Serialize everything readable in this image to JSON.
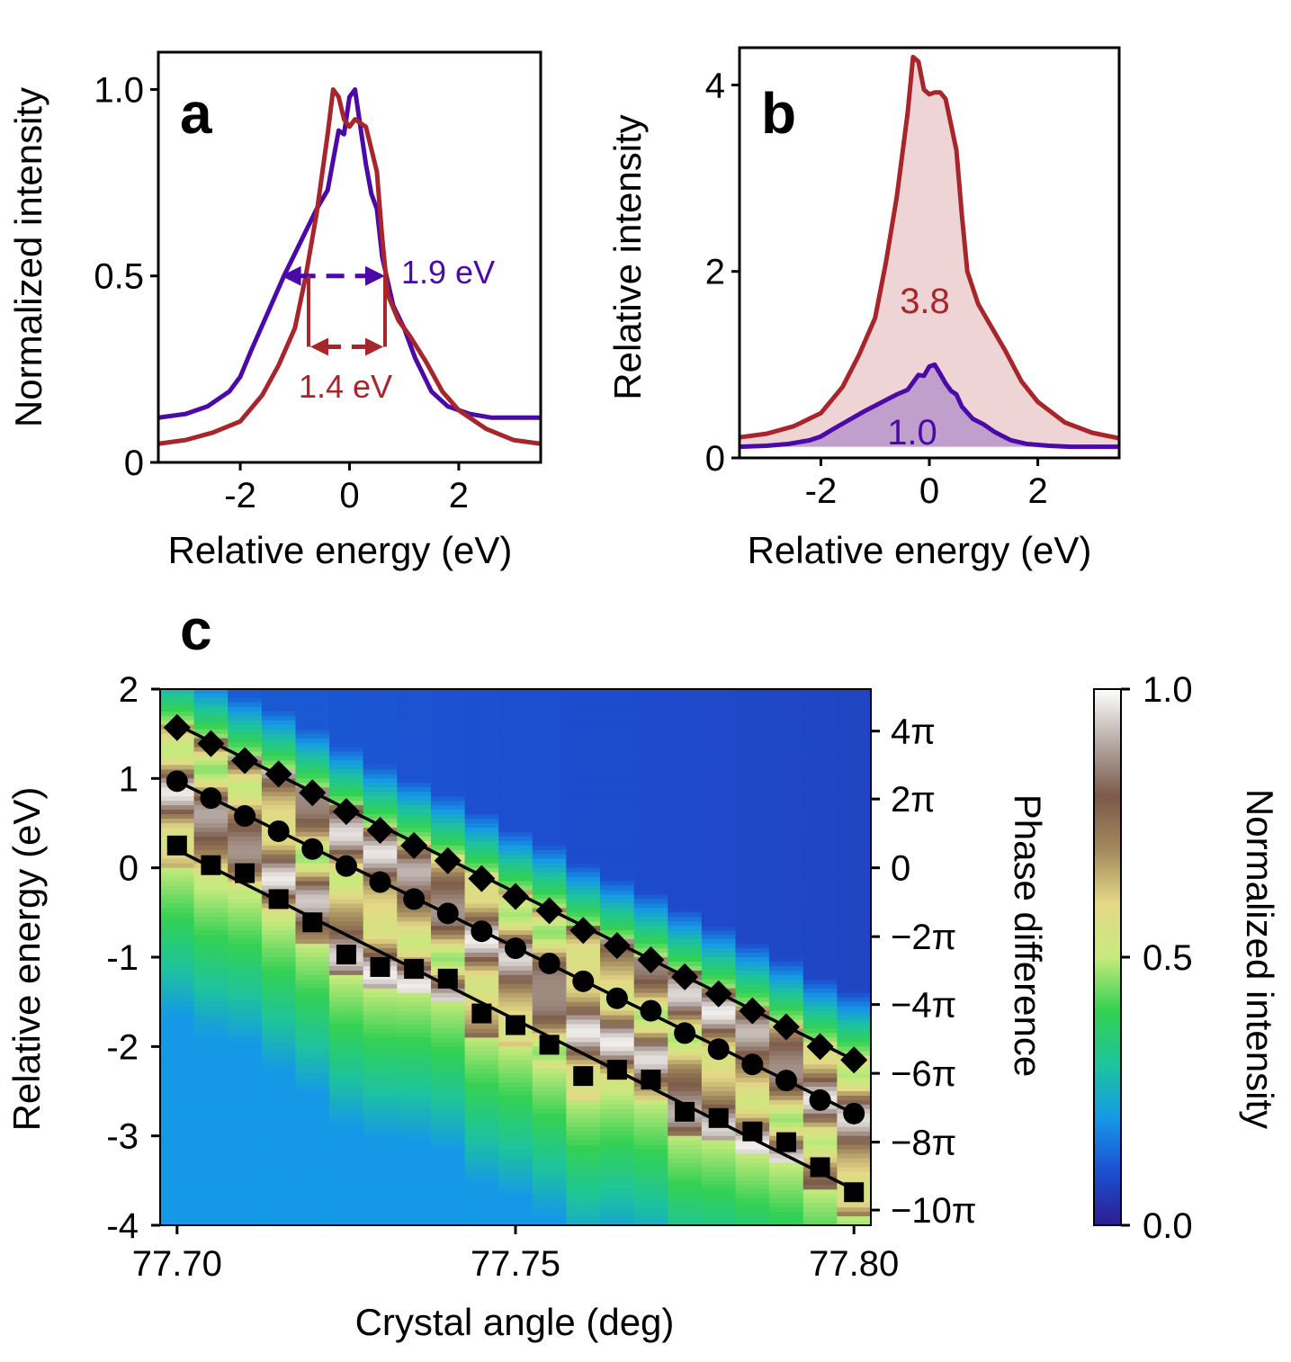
{
  "chart_data": [
    {
      "id": "a",
      "type": "line",
      "panel_label": "a",
      "xlabel": "Relative energy (eV)",
      "ylabel": "Normalized intensity",
      "xlim": [
        -3.5,
        3.5
      ],
      "ylim": [
        0,
        1.1
      ],
      "xticks": [
        "-2",
        "0",
        "2"
      ],
      "xtick_values": [
        -2,
        0,
        2
      ],
      "yticks": [
        "0",
        "0.5",
        "1.0"
      ],
      "ytick_values": [
        0,
        0.5,
        1.0
      ],
      "colors": {
        "purple": "#4b0aa8",
        "red": "#a8262b"
      },
      "series": [
        {
          "name": "purple",
          "x": [
            -3.5,
            -3.0,
            -2.6,
            -2.2,
            -2.0,
            -1.8,
            -1.5,
            -1.2,
            -1.0,
            -0.8,
            -0.6,
            -0.4,
            -0.2,
            -0.1,
            0.0,
            0.1,
            0.2,
            0.3,
            0.4,
            0.5,
            0.6,
            0.8,
            1.0,
            1.2,
            1.5,
            1.8,
            2.2,
            2.6,
            3.0,
            3.5
          ],
          "y": [
            0.12,
            0.13,
            0.15,
            0.19,
            0.23,
            0.3,
            0.4,
            0.5,
            0.56,
            0.62,
            0.68,
            0.73,
            0.89,
            0.88,
            0.98,
            1.0,
            0.9,
            0.8,
            0.72,
            0.68,
            0.55,
            0.42,
            0.36,
            0.28,
            0.19,
            0.15,
            0.13,
            0.12,
            0.12,
            0.12
          ]
        },
        {
          "name": "red",
          "x": [
            -3.5,
            -3.0,
            -2.5,
            -2.0,
            -1.6,
            -1.3,
            -1.0,
            -0.8,
            -0.6,
            -0.4,
            -0.3,
            -0.2,
            -0.1,
            0.0,
            0.1,
            0.2,
            0.3,
            0.5,
            0.6,
            0.7,
            0.9,
            1.1,
            1.4,
            1.7,
            2.0,
            2.5,
            3.0,
            3.5
          ],
          "y": [
            0.05,
            0.06,
            0.08,
            0.11,
            0.18,
            0.26,
            0.36,
            0.5,
            0.67,
            0.88,
            1.0,
            0.98,
            0.92,
            0.9,
            0.92,
            0.91,
            0.9,
            0.78,
            0.6,
            0.45,
            0.38,
            0.34,
            0.27,
            0.19,
            0.14,
            0.09,
            0.06,
            0.05
          ]
        }
      ],
      "annotations": [
        {
          "text": "1.9 eV",
          "color": "purple",
          "x_from": -1.25,
          "x_to": 0.65,
          "y": 0.5
        },
        {
          "text": "1.4 eV",
          "color": "red",
          "x_from": -0.75,
          "x_to": 0.65,
          "y": 0.31
        }
      ]
    },
    {
      "id": "b",
      "type": "area",
      "panel_label": "b",
      "xlabel": "Relative energy (eV)",
      "ylabel": "Relative intensity",
      "xlim": [
        -3.5,
        3.5
      ],
      "ylim": [
        0,
        4.4
      ],
      "xticks": [
        "-2",
        "0",
        "2"
      ],
      "xtick_values": [
        -2,
        0,
        2
      ],
      "yticks": [
        "0",
        "2",
        "4"
      ],
      "ytick_values": [
        0,
        2,
        4
      ],
      "series": [
        {
          "name": "red",
          "label": "3.8",
          "x": [
            -3.5,
            -3.0,
            -2.5,
            -2.0,
            -1.6,
            -1.3,
            -1.0,
            -0.8,
            -0.6,
            -0.4,
            -0.3,
            -0.2,
            -0.1,
            0.0,
            0.1,
            0.2,
            0.3,
            0.5,
            0.6,
            0.7,
            0.9,
            1.1,
            1.4,
            1.7,
            2.0,
            2.5,
            3.0,
            3.5
          ],
          "y": [
            0.22,
            0.26,
            0.34,
            0.48,
            0.76,
            1.1,
            1.5,
            2.1,
            2.8,
            3.7,
            4.3,
            4.25,
            3.95,
            3.9,
            3.92,
            3.92,
            3.85,
            3.3,
            2.6,
            2.0,
            1.65,
            1.45,
            1.15,
            0.82,
            0.6,
            0.38,
            0.27,
            0.21
          ]
        },
        {
          "name": "purple",
          "label": "1.0",
          "x": [
            -3.5,
            -3.0,
            -2.6,
            -2.2,
            -2.0,
            -1.8,
            -1.5,
            -1.2,
            -1.0,
            -0.8,
            -0.6,
            -0.4,
            -0.2,
            -0.1,
            0.0,
            0.1,
            0.2,
            0.3,
            0.4,
            0.5,
            0.6,
            0.8,
            1.0,
            1.2,
            1.5,
            1.8,
            2.2,
            2.6,
            3.0,
            3.5
          ],
          "y": [
            0.12,
            0.13,
            0.15,
            0.19,
            0.23,
            0.3,
            0.4,
            0.5,
            0.56,
            0.62,
            0.68,
            0.73,
            0.89,
            0.88,
            0.98,
            1.0,
            0.9,
            0.8,
            0.72,
            0.68,
            0.55,
            0.42,
            0.36,
            0.28,
            0.19,
            0.15,
            0.13,
            0.12,
            0.12,
            0.12
          ]
        }
      ]
    },
    {
      "id": "c",
      "type": "heatmap",
      "panel_label": "c",
      "xlabel": "Crystal angle (deg)",
      "ylabel": "Relative energy (eV)",
      "ylabel_right": "Phase difference",
      "colorbar_label": "Normalized intensity",
      "xlim": [
        77.6975,
        77.8025
      ],
      "ylim": [
        -4,
        2
      ],
      "xticks": [
        "77.70",
        "77.75",
        "77.80"
      ],
      "xtick_values": [
        77.7,
        77.75,
        77.8
      ],
      "yticks": [
        "-4",
        "-3",
        "-2",
        "-1",
        "0",
        "1",
        "2"
      ],
      "ytick_values": [
        -4,
        -3,
        -2,
        -1,
        0,
        1,
        2
      ],
      "phase_ticks": [
        "4π",
        "2π",
        "0",
        "−2π",
        "−4π",
        "−6π",
        "−8π",
        "−10π"
      ],
      "phase_tick_energy": [
        1.53,
        0.77,
        0.0,
        -0.77,
        -1.53,
        -2.3,
        -3.07,
        -3.83
      ],
      "colorbar_ticks": [
        "0.0",
        "0.5",
        "1.0"
      ],
      "colorbar_tick_values": [
        0,
        0.5,
        1.0
      ],
      "columns": 21,
      "col_angles": [
        77.7,
        77.705,
        77.71,
        77.715,
        77.72,
        77.725,
        77.73,
        77.735,
        77.74,
        77.745,
        77.75,
        77.755,
        77.76,
        77.765,
        77.77,
        77.775,
        77.78,
        77.785,
        77.79,
        77.795,
        77.8
      ],
      "series": [
        {
          "name": "diamonds",
          "marker": "diamond",
          "x": [
            77.7,
            77.705,
            77.71,
            77.715,
            77.72,
            77.725,
            77.73,
            77.735,
            77.74,
            77.745,
            77.75,
            77.755,
            77.76,
            77.765,
            77.77,
            77.775,
            77.78,
            77.785,
            77.79,
            77.795,
            77.8
          ],
          "y": [
            1.57,
            1.39,
            1.2,
            1.05,
            0.84,
            0.63,
            0.42,
            0.25,
            0.08,
            -0.12,
            -0.32,
            -0.48,
            -0.7,
            -0.87,
            -1.03,
            -1.22,
            -1.41,
            -1.6,
            -1.78,
            -2.0,
            -2.15
          ],
          "fit": [
            1.6,
            -2.15
          ]
        },
        {
          "name": "circles",
          "marker": "circle",
          "x": [
            77.7,
            77.705,
            77.71,
            77.715,
            77.72,
            77.725,
            77.73,
            77.735,
            77.74,
            77.745,
            77.75,
            77.755,
            77.76,
            77.765,
            77.77,
            77.775,
            77.78,
            77.785,
            77.79,
            77.795,
            77.8
          ],
          "y": [
            0.97,
            0.78,
            0.58,
            0.41,
            0.21,
            0.02,
            -0.16,
            -0.35,
            -0.51,
            -0.71,
            -0.9,
            -1.07,
            -1.27,
            -1.46,
            -1.6,
            -1.85,
            -2.03,
            -2.2,
            -2.38,
            -2.6,
            -2.75
          ],
          "fit": [
            0.97,
            -2.75
          ]
        },
        {
          "name": "squares",
          "marker": "square",
          "x": [
            77.7,
            77.705,
            77.71,
            77.715,
            77.72,
            77.725,
            77.73,
            77.735,
            77.74,
            77.745,
            77.75,
            77.755,
            77.76,
            77.765,
            77.77,
            77.775,
            77.78,
            77.785,
            77.79,
            77.795,
            77.8
          ],
          "y": [
            0.25,
            0.03,
            -0.06,
            -0.35,
            -0.61,
            -0.97,
            -1.11,
            -1.13,
            -1.24,
            -1.63,
            -1.76,
            -1.98,
            -2.33,
            -2.26,
            -2.37,
            -2.73,
            -2.8,
            -2.95,
            -3.07,
            -3.35,
            -3.63
          ],
          "fit": [
            0.2,
            -3.6
          ]
        }
      ]
    }
  ]
}
